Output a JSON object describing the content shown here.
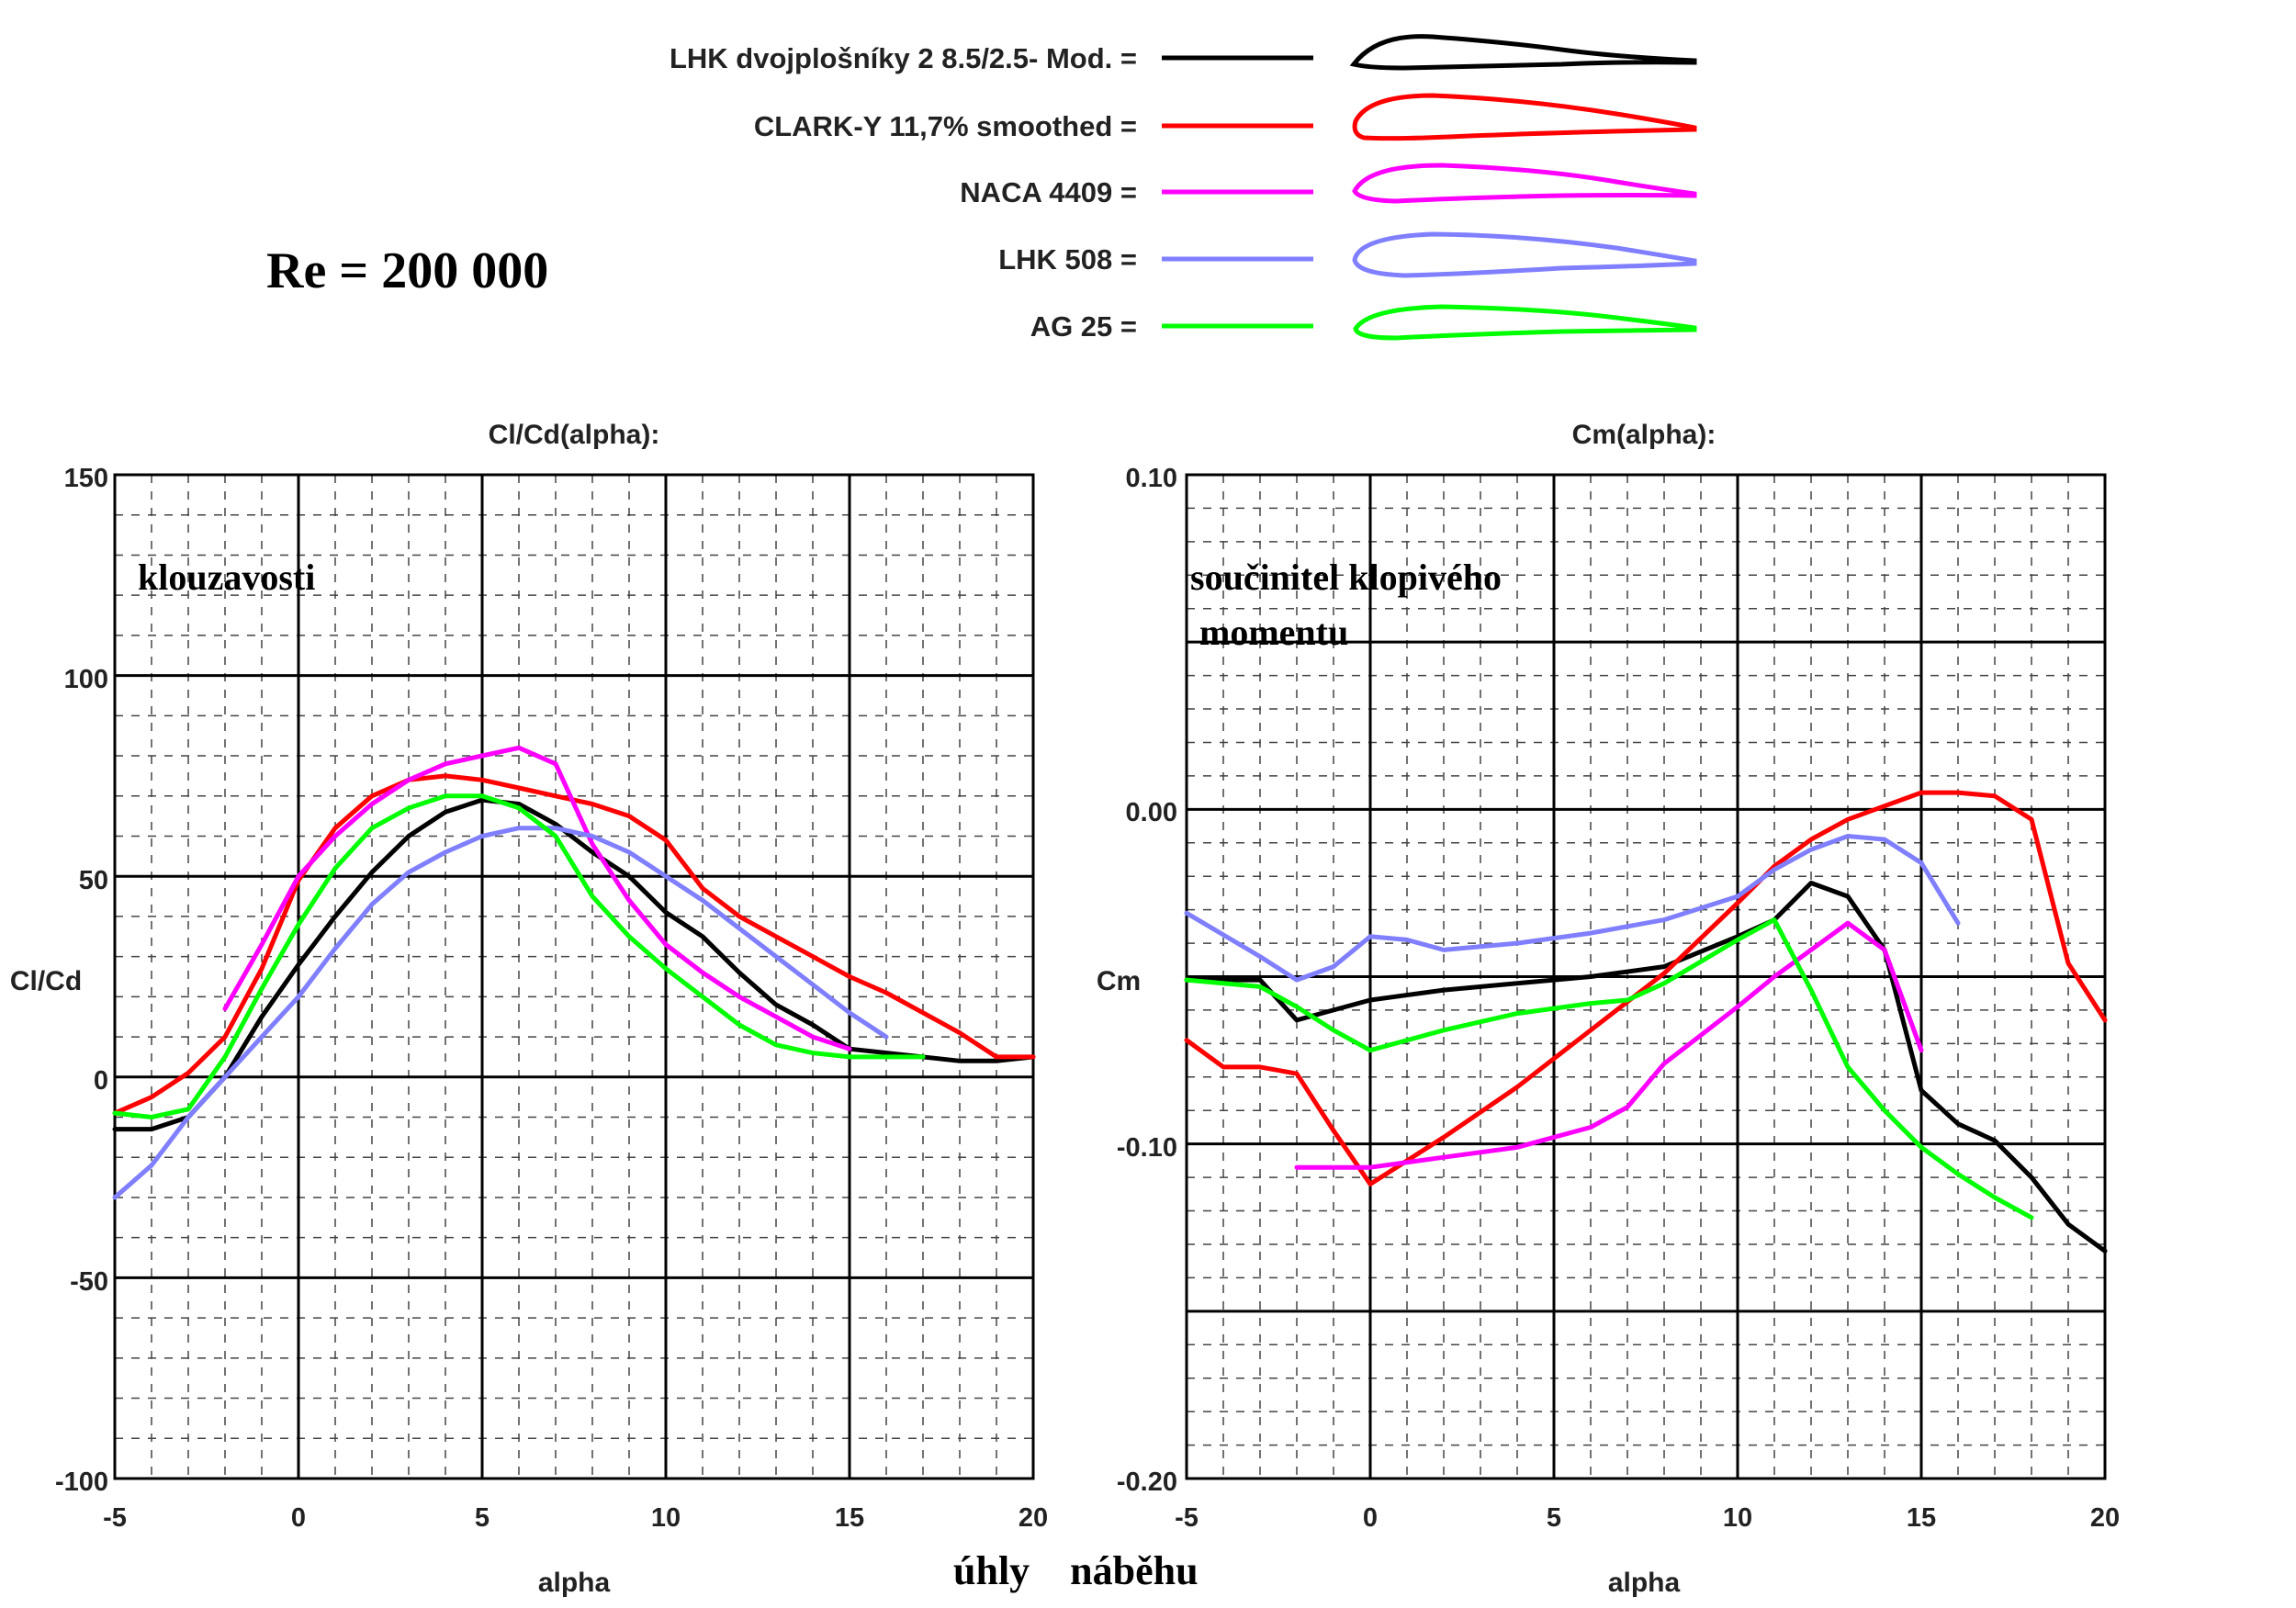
{
  "reynolds": "Re = 200 000",
  "axis_caption": "úhly    náběhu",
  "legend": [
    {
      "name": "LHK dvojplošníky 2 8.5/2.5- Mod. =",
      "color": "#000000"
    },
    {
      "name": "CLARK-Y 11,7% smoothed =",
      "color": "#ff0000"
    },
    {
      "name": "NACA 4409 =",
      "color": "#ff00ff"
    },
    {
      "name": "LHK  508 =",
      "color": "#7f7fff"
    },
    {
      "name": "AG 25 =",
      "color": "#00ff00"
    }
  ],
  "chart_data": [
    {
      "type": "line",
      "title": "Cl/Cd(alpha):",
      "annotation": "klouzavosti",
      "xlabel": "alpha",
      "ylabel": "Cl/Cd",
      "xlim": [
        -5,
        20
      ],
      "ylim": [
        -100,
        150
      ],
      "xticks": [
        "-5",
        "0",
        "5",
        "10",
        "15",
        "20"
      ],
      "yticks": [
        "-100",
        "-50",
        "0",
        "50",
        "100",
        "150"
      ],
      "grid": true,
      "series": [
        {
          "name": "LHK dvojplošníky 2 8.5/2.5- Mod.",
          "color": "#000000",
          "x": [
            -5,
            -4,
            -3,
            -2,
            -1,
            0,
            1,
            2,
            3,
            4,
            5,
            6,
            7,
            8,
            9,
            10,
            11,
            12,
            13,
            14,
            15,
            18,
            19,
            20
          ],
          "y": [
            -13,
            -13,
            -10,
            0,
            15,
            28,
            40,
            51,
            60,
            66,
            69,
            68,
            63,
            56,
            50,
            41,
            35,
            26,
            18,
            13,
            7,
            4,
            4,
            5
          ]
        },
        {
          "name": "CLARK-Y 11,7% smoothed",
          "color": "#ff0000",
          "x": [
            -5,
            -4,
            -3,
            -2,
            -1,
            0,
            1,
            2,
            3,
            4,
            5,
            6,
            7,
            8,
            9,
            10,
            11,
            12,
            13,
            14,
            15,
            16,
            17,
            18,
            19,
            20
          ],
          "y": [
            -9,
            -5,
            1,
            10,
            27,
            49,
            62,
            70,
            74,
            75,
            74,
            72,
            70,
            68,
            65,
            59,
            47,
            40,
            35,
            30,
            25,
            21,
            16,
            11,
            5,
            5
          ]
        },
        {
          "name": "NACA 4409",
          "color": "#ff00ff",
          "x": [
            -2,
            -1,
            0,
            1,
            2,
            3,
            4,
            5,
            6,
            7,
            8,
            9,
            10,
            11,
            12,
            13,
            14,
            15
          ],
          "y": [
            17,
            33,
            50,
            60,
            68,
            74,
            78,
            80,
            82,
            78,
            58,
            44,
            33,
            26,
            20,
            15,
            10,
            7
          ]
        },
        {
          "name": "LHK  508",
          "color": "#7f7fff",
          "x": [
            -5,
            -4,
            -3,
            -2,
            -1,
            0,
            1,
            2,
            3,
            4,
            5,
            6,
            7,
            8,
            9,
            10,
            11,
            12,
            13,
            14,
            15,
            16
          ],
          "y": [
            -30,
            -22,
            -10,
            0,
            10,
            20,
            32,
            43,
            51,
            56,
            60,
            62,
            62,
            60,
            56,
            50,
            44,
            37,
            30,
            23,
            16,
            10
          ]
        },
        {
          "name": "AG 25",
          "color": "#00ff00",
          "x": [
            -5,
            -4,
            -3,
            -2,
            -1,
            0,
            1,
            2,
            3,
            4,
            5,
            6,
            7,
            8,
            9,
            10,
            11,
            12,
            13,
            14,
            15,
            16,
            17
          ],
          "y": [
            -9,
            -10,
            -8,
            5,
            22,
            38,
            52,
            62,
            67,
            70,
            70,
            67,
            60,
            45,
            35,
            27,
            20,
            13,
            8,
            6,
            5,
            5,
            5
          ]
        }
      ]
    },
    {
      "type": "line",
      "title": "Cm(alpha):",
      "annotation_line1": "součinitel klopivého",
      "annotation_line2": "momentu",
      "xlabel": "alpha",
      "ylabel": "Cm",
      "xlim": [
        -5,
        20
      ],
      "ylim": [
        -0.2,
        0.1
      ],
      "xticks": [
        "-5",
        "0",
        "5",
        "10",
        "15",
        "20"
      ],
      "yticks": [
        "-0.20",
        "-0.10",
        "0.00",
        "0.10"
      ],
      "grid": true,
      "series": [
        {
          "name": "LHK dvojplošníky 2 8.5/2.5- Mod.",
          "color": "#000000",
          "x": [
            -5,
            -3,
            -2,
            -1,
            0,
            2,
            4,
            6,
            8,
            10,
            11,
            12,
            13,
            14,
            15,
            16,
            17,
            18,
            19,
            20
          ],
          "y": [
            -0.051,
            -0.051,
            -0.063,
            -0.06,
            -0.057,
            -0.054,
            -0.052,
            -0.05,
            -0.047,
            -0.038,
            -0.033,
            -0.022,
            -0.026,
            -0.042,
            -0.084,
            -0.094,
            -0.099,
            -0.11,
            -0.124,
            -0.132
          ]
        },
        {
          "name": "CLARK-Y 11,7% smoothed",
          "color": "#ff0000",
          "x": [
            -5,
            -4,
            -3,
            -2,
            -1,
            0,
            2,
            4,
            6,
            8,
            10,
            11,
            12,
            13,
            14,
            15,
            16,
            17,
            18,
            19,
            20
          ],
          "y": [
            -0.069,
            -0.077,
            -0.077,
            -0.079,
            -0.096,
            -0.112,
            -0.098,
            -0.083,
            -0.066,
            -0.049,
            -0.028,
            -0.017,
            -0.009,
            -0.003,
            0.001,
            0.005,
            0.005,
            0.004,
            -0.003,
            -0.046,
            -0.063
          ]
        },
        {
          "name": "NACA 4409",
          "color": "#ff00ff",
          "x": [
            -2,
            0,
            2,
            4,
            6,
            7,
            8,
            10,
            11,
            12,
            13,
            14,
            15
          ],
          "y": [
            -0.107,
            -0.107,
            -0.104,
            -0.101,
            -0.095,
            -0.089,
            -0.076,
            -0.059,
            -0.05,
            -0.042,
            -0.034,
            -0.042,
            -0.072
          ]
        },
        {
          "name": "LHK  508",
          "color": "#7f7fff",
          "x": [
            -5,
            -3,
            -2,
            -1,
            0,
            1,
            2,
            4,
            6,
            8,
            10,
            11,
            12,
            13,
            14,
            15,
            16
          ],
          "y": [
            -0.031,
            -0.044,
            -0.051,
            -0.047,
            -0.038,
            -0.039,
            -0.042,
            -0.04,
            -0.037,
            -0.033,
            -0.026,
            -0.018,
            -0.012,
            -0.008,
            -0.009,
            -0.016,
            -0.034
          ]
        },
        {
          "name": "AG 25",
          "color": "#00ff00",
          "x": [
            -5,
            -3,
            -2,
            -1,
            0,
            2,
            4,
            6,
            7,
            8,
            10,
            11,
            12,
            13,
            14,
            15,
            16,
            17,
            18
          ],
          "y": [
            -0.051,
            -0.053,
            -0.059,
            -0.066,
            -0.072,
            -0.066,
            -0.061,
            -0.058,
            -0.057,
            -0.052,
            -0.039,
            -0.033,
            -0.054,
            -0.077,
            -0.09,
            -0.101,
            -0.109,
            -0.116,
            -0.122
          ]
        }
      ]
    }
  ]
}
